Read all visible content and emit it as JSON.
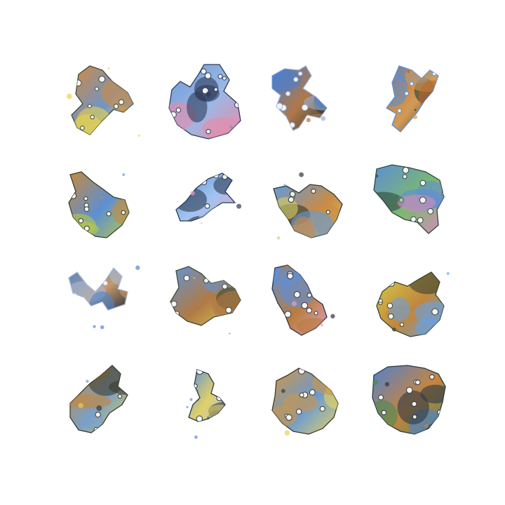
{
  "grid": {
    "rows": 4,
    "columns": 4
  },
  "samples": [
    {
      "row": 1,
      "col": 1,
      "palette": [
        "#d68a3a",
        "#e9d34c",
        "#3d4a3a",
        "#6e94c8"
      ]
    },
    {
      "row": 1,
      "col": 2,
      "palette": [
        "#6e9ad8",
        "#e98aa6",
        "#2e3c5a",
        "#9ab8e6"
      ]
    },
    {
      "row": 1,
      "col": 3,
      "palette": [
        "#4a7fd0",
        "#2f3b3a",
        "#9ab0d6",
        "#b07848"
      ]
    },
    {
      "row": 1,
      "col": 4,
      "palette": [
        "#b8682e",
        "#2d3b32",
        "#5a8fd4",
        "#d39a56"
      ]
    },
    {
      "row": 2,
      "col": 1,
      "palette": [
        "#c68a3c",
        "#b8c948",
        "#3a3e2a",
        "#5d8fd2"
      ]
    },
    {
      "row": 2,
      "col": 2,
      "palette": [
        "#5b8ed6",
        "#e2a2c6",
        "#2d3a52",
        "#a0c4f0"
      ]
    },
    {
      "row": 2,
      "col": 3,
      "palette": [
        "#5f9be0",
        "#d8cf62",
        "#2f3a2e",
        "#c98b46"
      ]
    },
    {
      "row": 2,
      "col": 4,
      "palette": [
        "#5d8ed4",
        "#d98bbd",
        "#2e4a3a",
        "#7cb870"
      ]
    },
    {
      "row": 3,
      "col": 1,
      "palette": [
        "#4e86d2",
        "#2d3340",
        "#a7b9d8",
        "#c49a6a"
      ]
    },
    {
      "row": 3,
      "col": 2,
      "palette": [
        "#5f95d8",
        "#d9cf58",
        "#3c4a36",
        "#b17a44"
      ]
    },
    {
      "row": 3,
      "col": 3,
      "palette": [
        "#5b90dc",
        "#e2a0bc",
        "#2f3446",
        "#b97c3e"
      ]
    },
    {
      "row": 3,
      "col": 4,
      "palette": [
        "#d8cd4a",
        "#6aa0dc",
        "#3b4530",
        "#c0873e"
      ]
    },
    {
      "row": 4,
      "col": 1,
      "palette": [
        "#c98534",
        "#e2d24e",
        "#3d3c2c",
        "#7aa0c8"
      ]
    },
    {
      "row": 4,
      "col": 2,
      "palette": [
        "#5b8fd8",
        "#b4c7ea",
        "#2d3648",
        "#e0d06a"
      ]
    },
    {
      "row": 4,
      "col": 3,
      "palette": [
        "#cf9642",
        "#e6d45e",
        "#3d3a2e",
        "#6a9ad4"
      ]
    },
    {
      "row": 4,
      "col": 4,
      "palette": [
        "#4f82cf",
        "#4a8a54",
        "#2c3844",
        "#c7843e"
      ]
    }
  ]
}
